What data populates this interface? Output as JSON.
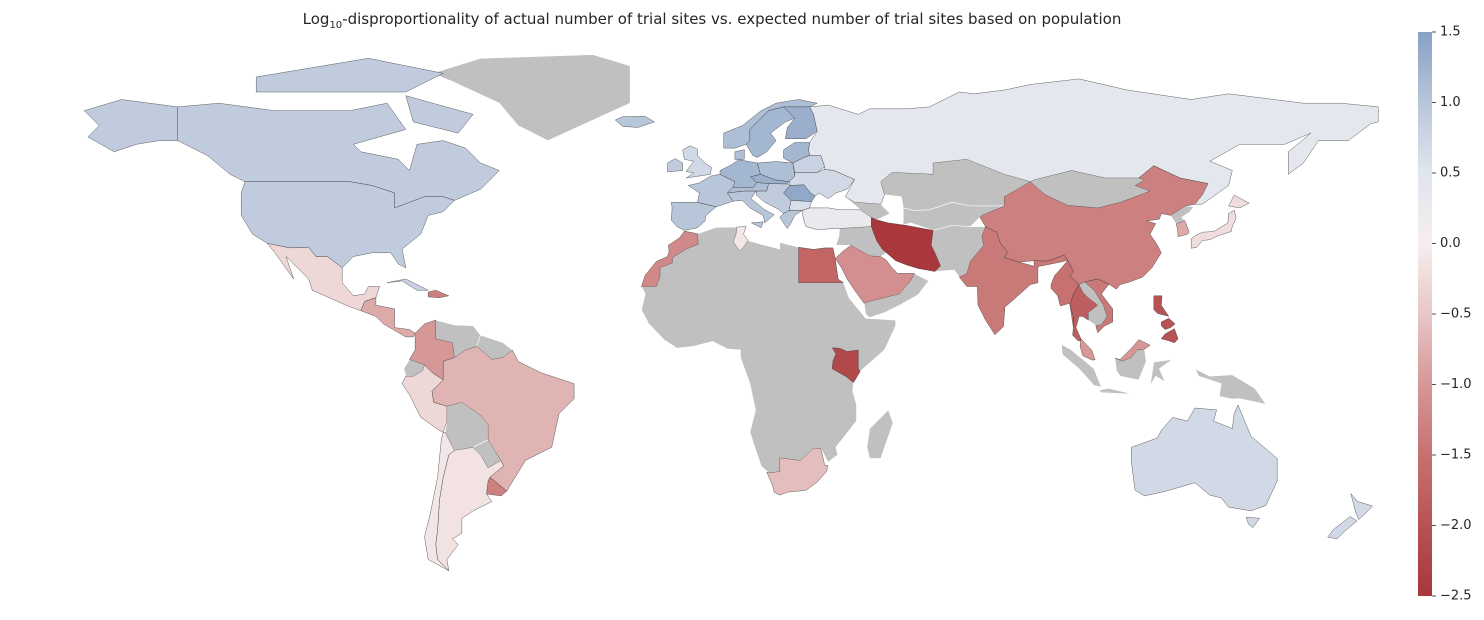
{
  "chart_data": {
    "type": "choropleth",
    "title": [
      "Log",
      "10",
      "-disproportionality of actual number of trial sites vs. expected number of trial sites based on population"
    ],
    "values": [
      0.9,
      null,
      0.9,
      -0.3,
      -0.8,
      0.8,
      -1.3,
      -1.0,
      null,
      null,
      null,
      -0.3,
      null,
      -0.7,
      null,
      -1.3,
      -0.15,
      -0.1,
      1.0,
      1.0,
      0.7,
      0.9,
      1.2,
      1.1,
      1.0,
      1.1,
      1.3,
      0.9,
      1.4,
      0.6,
      1.0,
      1.2,
      0.8,
      0.7,
      1.1,
      1.2,
      1.3,
      1.1,
      1.0,
      0.4,
      null,
      null,
      0.3,
      null,
      -2.5,
      null,
      -1.1,
      null,
      -1.7,
      -1.2,
      -0.1,
      null,
      -2.2,
      -0.6,
      null,
      -1.4,
      null,
      -1.3,
      null,
      null,
      -0.8,
      -0.2,
      -1.5,
      -1.8,
      null,
      -1.4,
      -1.0,
      null,
      -2.0,
      0.7,
      0.7
    ],
    "missing_color": "#c0c0c0",
    "colormap": [
      "#a9373b",
      "#b75354",
      "#c77171",
      "#d69797",
      "#e8c7c7",
      "#f6eeee",
      "#e1e5ee",
      "#b8c6da",
      "#87a0c3"
    ],
    "zlim": [
      -2.5,
      1.5
    ],
    "zticks": [
      1.5,
      {
        "value": 1.0,
        "label": "1.0"
      },
      0.5,
      {
        "value": 0.0,
        "label": "0.0"
      },
      {
        "value": -0.5,
        "label": "−0.5"
      },
      {
        "value": -1.0,
        "label": "−1.0"
      },
      {
        "value": -1.5,
        "label": "−1.5"
      },
      {
        "value": -2.0,
        "label": "−2.0"
      },
      {
        "value": -2.5,
        "label": "−2.5"
      }
    ]
  }
}
